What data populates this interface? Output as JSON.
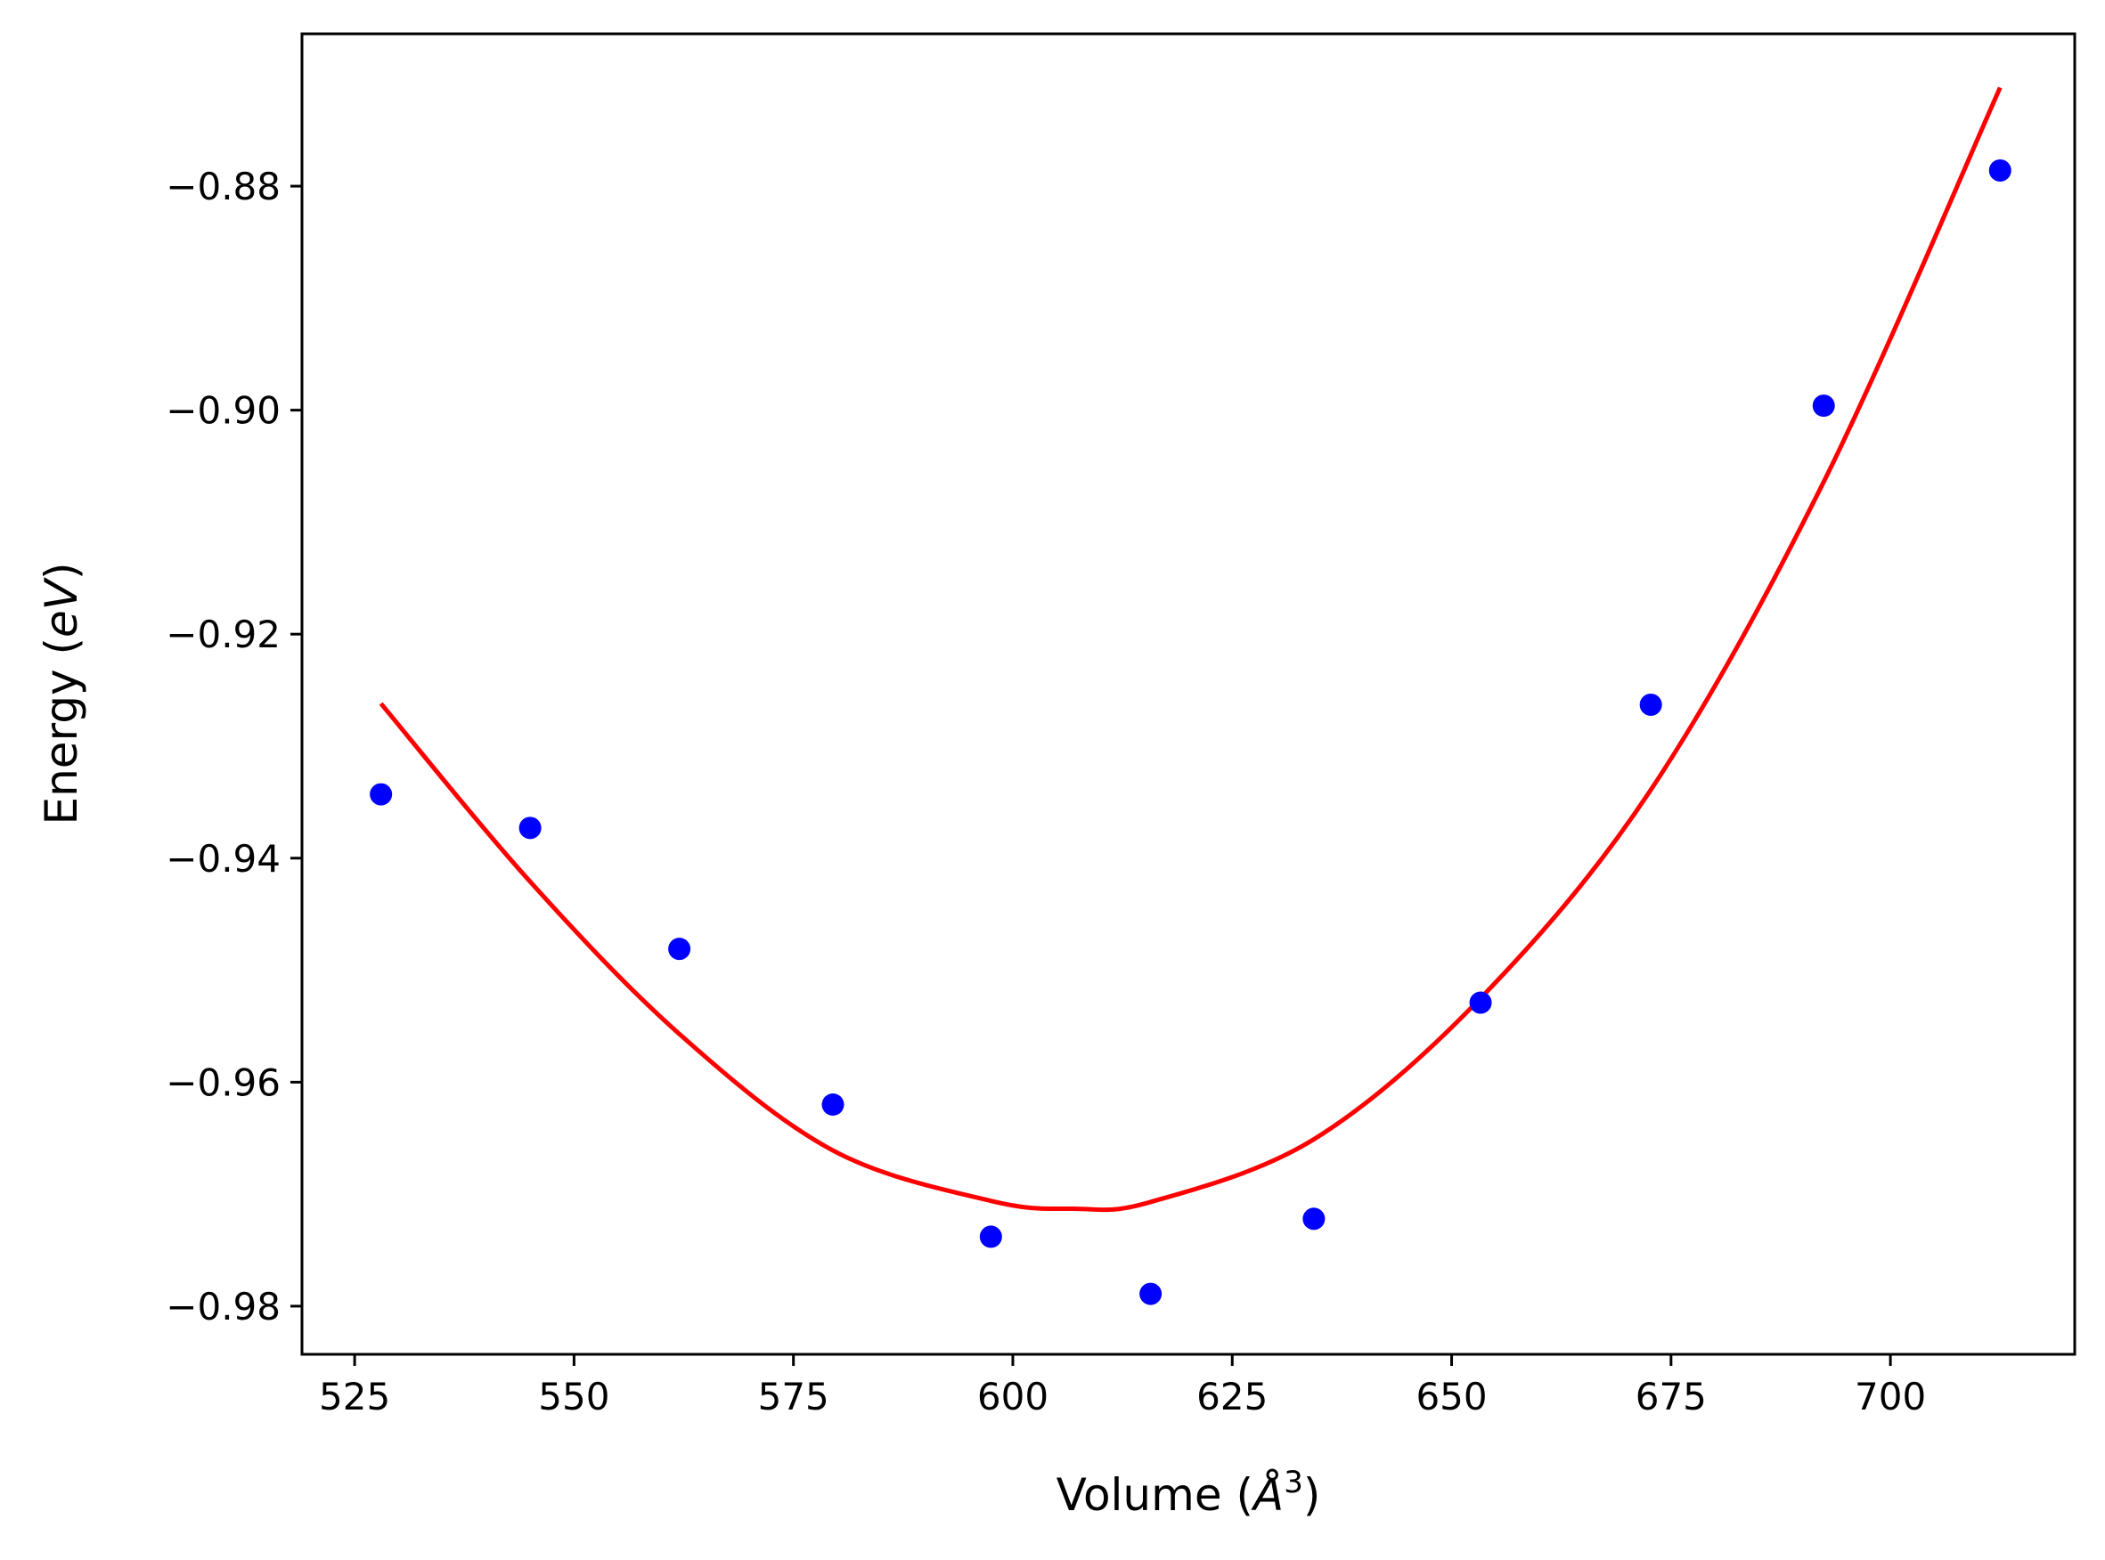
{
  "chart_data": {
    "type": "scatter",
    "xlabel": "Volume (Å³)",
    "xlabel_parts": {
      "prefix": "Volume (",
      "unit_base": "Å",
      "unit_sup": "3",
      "suffix": ")"
    },
    "ylabel": "Energy (eV)",
    "ylabel_parts": {
      "prefix": "Energy (",
      "unit": "eV",
      "suffix": ")"
    },
    "xlim": [
      519,
      721
    ],
    "ylim": [
      -0.9843,
      -0.8664
    ],
    "x_ticks": [
      525,
      550,
      575,
      600,
      625,
      650,
      675,
      700
    ],
    "x_tick_labels": [
      "525",
      "550",
      "575",
      "600",
      "625",
      "650",
      "675",
      "700"
    ],
    "y_ticks": [
      -0.88,
      -0.9,
      -0.92,
      -0.94,
      -0.96,
      -0.98
    ],
    "y_tick_labels": [
      "−0.88",
      "−0.90",
      "−0.92",
      "−0.94",
      "−0.96",
      "−0.98"
    ],
    "grid": false,
    "legend": "none",
    "series": [
      {
        "kind": "scatter",
        "color": "#0000ff",
        "x": [
          528.0,
          545.0,
          562.0,
          579.5,
          597.5,
          615.7,
          634.3,
          653.3,
          672.7,
          692.4,
          712.5
        ],
        "y": [
          -0.9343,
          -0.9373,
          -0.9481,
          -0.962,
          -0.9738,
          -0.9789,
          -0.9722,
          -0.9529,
          -0.9263,
          -0.8996,
          -0.8786
        ]
      },
      {
        "kind": "line",
        "color": "#ff0000",
        "x": [
          528,
          545,
          562,
          579.5,
          597.5,
          607,
          615.7,
          634.3,
          653.3,
          672.7,
          692.4,
          712.5
        ],
        "y": [
          -0.9262,
          -0.9421,
          -0.9557,
          -0.9661,
          -0.9706,
          -0.9713,
          -0.9707,
          -0.9651,
          -0.9525,
          -0.9339,
          -0.9064,
          -0.8712
        ]
      }
    ]
  }
}
